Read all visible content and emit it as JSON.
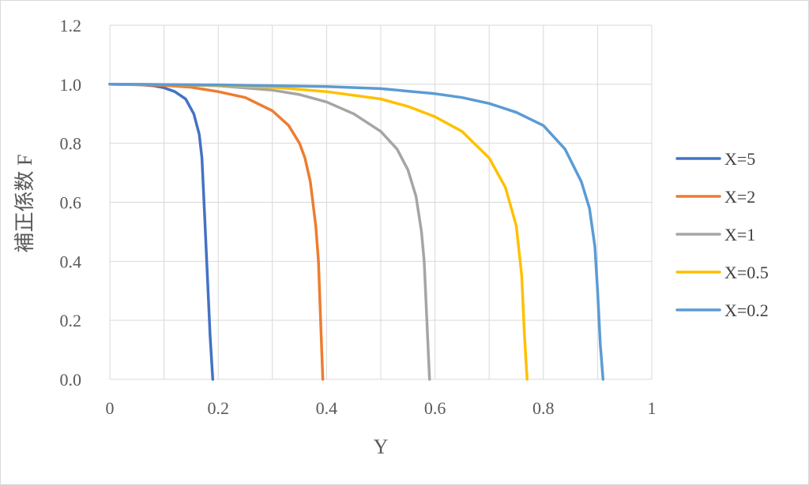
{
  "chart_data": {
    "type": "line",
    "title": "",
    "xlabel": "Y",
    "ylabel": "補正係数 F",
    "xlim": [
      0,
      1
    ],
    "ylim": [
      0,
      1.2
    ],
    "xticks": [
      0,
      0.2,
      0.4,
      0.6,
      0.8,
      1
    ],
    "xtick_labels": [
      "0",
      "0.2",
      "0.4",
      "0.6",
      "0.8",
      "1"
    ],
    "yticks": [
      0,
      0.2,
      0.4,
      0.6,
      0.8,
      1.0,
      1.2
    ],
    "ytick_labels": [
      "0.0",
      "0.2",
      "0.4",
      "0.6",
      "0.8",
      "1.0",
      "1.2"
    ],
    "grid": true,
    "legend_position": "right",
    "series": [
      {
        "name": "X=5",
        "color": "#4472C4",
        "x": [
          0,
          0.05,
          0.08,
          0.1,
          0.12,
          0.14,
          0.155,
          0.165,
          0.17,
          0.175,
          0.18,
          0.185,
          0.19
        ],
        "y": [
          1.0,
          0.999,
          0.995,
          0.988,
          0.975,
          0.95,
          0.9,
          0.83,
          0.75,
          0.55,
          0.35,
          0.15,
          0.0
        ]
      },
      {
        "name": "X=2",
        "color": "#ED7D31",
        "x": [
          0,
          0.1,
          0.15,
          0.2,
          0.25,
          0.3,
          0.33,
          0.35,
          0.36,
          0.37,
          0.38,
          0.385,
          0.39,
          0.393
        ],
        "y": [
          1.0,
          0.996,
          0.99,
          0.975,
          0.955,
          0.91,
          0.86,
          0.8,
          0.75,
          0.67,
          0.52,
          0.4,
          0.15,
          0.0
        ]
      },
      {
        "name": "X=1",
        "color": "#A5A5A5",
        "x": [
          0,
          0.1,
          0.2,
          0.3,
          0.35,
          0.4,
          0.45,
          0.5,
          0.53,
          0.55,
          0.565,
          0.575,
          0.58,
          0.585,
          0.59
        ],
        "y": [
          1.0,
          0.999,
          0.995,
          0.98,
          0.965,
          0.94,
          0.9,
          0.84,
          0.78,
          0.71,
          0.62,
          0.5,
          0.4,
          0.2,
          0.0
        ]
      },
      {
        "name": "X=0.5",
        "color": "#FFC000",
        "x": [
          0,
          0.1,
          0.2,
          0.3,
          0.4,
          0.5,
          0.55,
          0.6,
          0.65,
          0.7,
          0.73,
          0.75,
          0.76,
          0.765,
          0.77
        ],
        "y": [
          1.0,
          0.999,
          0.997,
          0.99,
          0.975,
          0.95,
          0.925,
          0.89,
          0.84,
          0.75,
          0.65,
          0.52,
          0.35,
          0.15,
          0.0
        ]
      },
      {
        "name": "X=0.2",
        "color": "#5B9BD5",
        "x": [
          0,
          0.2,
          0.4,
          0.5,
          0.6,
          0.65,
          0.7,
          0.75,
          0.8,
          0.84,
          0.87,
          0.885,
          0.895,
          0.9,
          0.905,
          0.91
        ],
        "y": [
          1.0,
          0.998,
          0.992,
          0.985,
          0.968,
          0.955,
          0.935,
          0.905,
          0.86,
          0.78,
          0.67,
          0.58,
          0.45,
          0.3,
          0.12,
          0.0
        ]
      }
    ]
  }
}
